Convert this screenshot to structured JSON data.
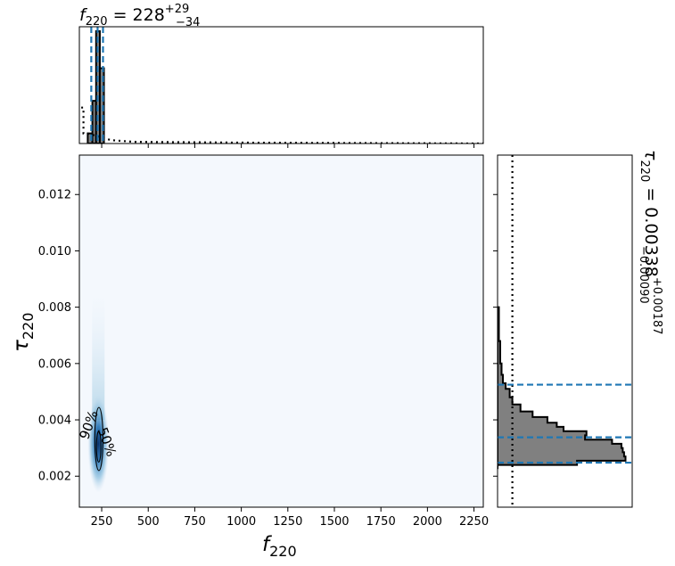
{
  "chart_data": [
    {
      "type": "area",
      "panel": "top-marginal",
      "title": {
        "base": "f",
        "sub": "220",
        "eq": " = 228",
        "sup": "+29",
        "low": "−34"
      },
      "xlim": [
        130,
        2300
      ],
      "xticks": [
        250,
        500,
        750,
        1000,
        1250,
        1500,
        1750,
        2000,
        2250
      ],
      "histogram": {
        "bins": [
          [
            175,
            200,
            0.09
          ],
          [
            200,
            220,
            0.38
          ],
          [
            220,
            240,
            1.0
          ],
          [
            240,
            262,
            0.67
          ],
          [
            262,
            285,
            0.0
          ]
        ]
      },
      "prior": [
        [
          140,
          0.32
        ],
        [
          152,
          0.32
        ],
        [
          152,
          0.09
        ],
        [
          175,
          0.09
        ],
        [
          300,
          0.03
        ],
        [
          420,
          0.015
        ],
        [
          1000,
          0.008
        ],
        [
          2300,
          0.0
        ]
      ],
      "quantile_lines": [
        194,
        228,
        257
      ],
      "colors": {
        "fill": "#808080",
        "edge": "#000000",
        "quantile": "#1f77b4"
      }
    },
    {
      "type": "heatmap",
      "panel": "joint",
      "xlabel": {
        "base": "f",
        "sub": "220"
      },
      "ylabel": {
        "base": "τ",
        "sub": "220"
      },
      "xlim": [
        130,
        2300
      ],
      "ylim": [
        0.0009,
        0.0134
      ],
      "xticks": [
        250,
        500,
        750,
        1000,
        1250,
        1500,
        1750,
        2000,
        2250
      ],
      "yticks": [
        0.002,
        0.004,
        0.006,
        0.008,
        0.01,
        0.012
      ],
      "yticklabels": [
        "0.002",
        "0.004",
        "0.006",
        "0.008",
        "0.010",
        "0.012"
      ],
      "density_peak": {
        "x": 232,
        "y": 0.0029
      },
      "contours": [
        {
          "label": "90%",
          "cx": 235,
          "cy": 0.00332,
          "rx": 22,
          "ry": 0.00112
        },
        {
          "label": "50%",
          "cx": 234,
          "cy": 0.00305,
          "rx": 12,
          "ry": 0.00055
        }
      ],
      "colors": {
        "background": "#f4f8fd",
        "peak": "#08306b",
        "mid": "#4a90c8",
        "contour": "#000000"
      }
    },
    {
      "type": "area",
      "panel": "right-marginal",
      "title": {
        "base": "τ",
        "sub": "220",
        "eq": " = 0.00338",
        "sup": "+0.00187",
        "low": "−0.00090"
      },
      "ylim": [
        0.0009,
        0.0134
      ],
      "xlim": [
        0,
        1.0
      ],
      "histogram": {
        "bins": [
          [
            0.00225,
            0.0024,
            0.0
          ],
          [
            0.0024,
            0.00255,
            0.59
          ],
          [
            0.00255,
            0.0027,
            0.95
          ],
          [
            0.0027,
            0.00285,
            0.94
          ],
          [
            0.00285,
            0.003,
            0.93
          ],
          [
            0.003,
            0.00315,
            0.92
          ],
          [
            0.00315,
            0.0033,
            0.85
          ],
          [
            0.0033,
            0.00345,
            0.65
          ],
          [
            0.00345,
            0.0036,
            0.66
          ],
          [
            0.0036,
            0.00375,
            0.49
          ],
          [
            0.00375,
            0.0039,
            0.44
          ],
          [
            0.0039,
            0.0041,
            0.37
          ],
          [
            0.0041,
            0.0043,
            0.26
          ],
          [
            0.0043,
            0.00455,
            0.17
          ],
          [
            0.00455,
            0.0048,
            0.11
          ],
          [
            0.0048,
            0.0051,
            0.09
          ],
          [
            0.0051,
            0.0053,
            0.06
          ],
          [
            0.0053,
            0.0056,
            0.04
          ],
          [
            0.0056,
            0.006,
            0.03
          ],
          [
            0.006,
            0.0068,
            0.02
          ],
          [
            0.0068,
            0.008,
            0.01
          ]
        ]
      },
      "prior_x": 0.11,
      "quantile_lines": [
        0.00248,
        0.00338,
        0.00525
      ],
      "colors": {
        "fill": "#808080",
        "edge": "#000000",
        "quantile": "#1f77b4"
      }
    }
  ]
}
